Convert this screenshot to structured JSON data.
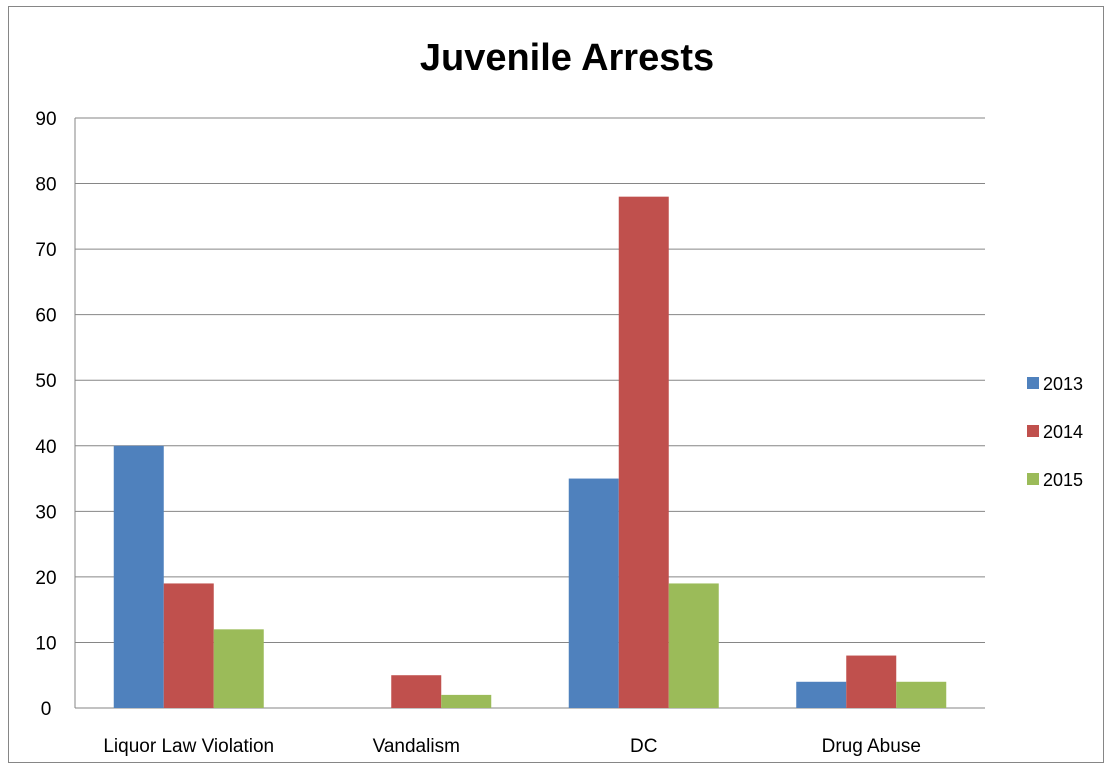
{
  "chart_data": {
    "type": "bar",
    "title": "Juvenile Arrests",
    "xlabel": "",
    "ylabel": "",
    "categories": [
      "Liquor Law Violation",
      "Vandalism",
      "DC",
      "Drug Abuse"
    ],
    "series": [
      {
        "name": "2013",
        "values": [
          40,
          0,
          35,
          4
        ],
        "color": "#4F81BD"
      },
      {
        "name": "2014",
        "values": [
          19,
          5,
          78,
          8
        ],
        "color": "#C0504D"
      },
      {
        "name": "2015",
        "values": [
          12,
          2,
          19,
          4
        ],
        "color": "#9BBB59"
      }
    ],
    "ylim": [
      0,
      90
    ],
    "yticks": [
      "0",
      "10",
      "20",
      "30",
      "40",
      "50",
      "60",
      "70",
      "80",
      "90"
    ],
    "grid": true,
    "legend_position": "right"
  }
}
